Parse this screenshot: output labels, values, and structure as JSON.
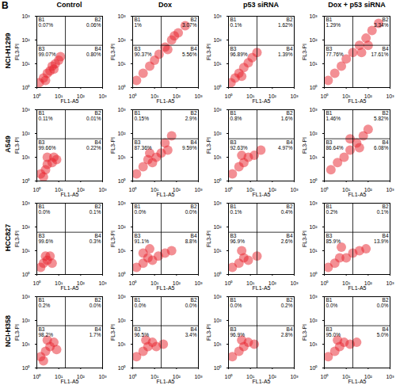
{
  "chart_data": {
    "type": "scatter",
    "panel_label": "B",
    "rows": [
      "NCI-H1299",
      "A549",
      "HCC827",
      "NCI-H358"
    ],
    "columns": [
      "Control",
      "Dox",
      "p53 siRNA",
      "Dox + p53 siRNA"
    ],
    "xlabel": "FL1-A5",
    "ylabel": "FL3-PI",
    "log": true,
    "xlim": [
      1,
      1000
    ],
    "ylim": [
      1,
      1000
    ],
    "xticks": [
      {
        "value": 1,
        "label": "10⁰"
      },
      {
        "value": 10,
        "label": "10¹"
      },
      {
        "value": 100,
        "label": "10²"
      },
      {
        "value": 1000,
        "label": "10³"
      }
    ],
    "yticks": [
      {
        "value": 1,
        "label": "10⁰"
      },
      {
        "value": 10,
        "label": "10¹"
      },
      {
        "value": 100,
        "label": "10²"
      },
      {
        "value": 1000,
        "label": "10³"
      }
    ],
    "color": "#e8202a",
    "marker": "circle",
    "gate": {
      "x": 20,
      "y": 60
    },
    "quadrant_names": [
      "B1",
      "B2",
      "B3",
      "B4"
    ],
    "panels": [
      [
        {
          "points": {
            "x": [
              1.3,
              2,
              3,
              4,
              5,
              7,
              10,
              2.5,
              6,
              12
            ],
            "y": [
              1.6,
              2.5,
              4,
              5,
              8,
              10,
              14,
              2,
              6,
              20
            ]
          },
          "values": [
            0.07,
            0.06,
            99.07,
            0.8
          ],
          "value_labels": [
            "0.07%",
            "0.06%",
            "99.07%",
            "0.80%"
          ]
        },
        {
          "points": {
            "x": [
              1.5,
              3,
              6,
              10,
              16,
              30,
              60,
              120,
              250,
              40,
              80
            ],
            "y": [
              2,
              4,
              8,
              14,
              25,
              50,
              100,
              200,
              400,
              40,
              150
            ]
          },
          "values": [
            1,
            3.07,
            90.37,
            5.56
          ],
          "value_labels": [
            "1%",
            "3.07%",
            "90.37%",
            "5.56%"
          ]
        },
        {
          "points": {
            "x": [
              1.3,
              2,
              3,
              5,
              8,
              12,
              4,
              20
            ],
            "y": [
              1.6,
              2.5,
              4,
              7,
              11,
              18,
              3,
              30
            ]
          },
          "values": [
            0.1,
            1.62,
            96.89,
            1.39
          ],
          "value_labels": [
            "0.1%",
            "1.62%",
            "96.89%",
            "1.39%"
          ]
        },
        {
          "points": {
            "x": [
              1.5,
              3,
              6,
              10,
              20,
              40,
              80,
              150,
              300,
              50,
              100
            ],
            "y": [
              2,
              4,
              8,
              16,
              30,
              60,
              120,
              250,
              500,
              30,
              60
            ]
          },
          "values": [
            1.29,
            3.34,
            77.76,
            17.61
          ],
          "value_labels": [
            "1.29%",
            "3.34%",
            "77.76%",
            "17.61%"
          ]
        }
      ],
      [
        {
          "points": {
            "x": [
              1.5,
              2.5,
              3,
              5,
              6,
              3,
              8,
              2
            ],
            "y": [
              2,
              3,
              5,
              6,
              10,
              10,
              8,
              1.5
            ]
          },
          "values": [
            0.11,
            0.01,
            99.66,
            0.22
          ],
          "value_labels": [
            "0.11%",
            "0.01%",
            "99.66%",
            "0.22%"
          ]
        },
        {
          "points": {
            "x": [
              1.5,
              3,
              5,
              8,
              12,
              20,
              40,
              6,
              30,
              60
            ],
            "y": [
              2,
              4,
              8,
              6,
              10,
              15,
              20,
              15,
              40,
              80
            ]
          },
          "values": [
            0.15,
            2.9,
            87.36,
            9.59
          ],
          "value_labels": [
            "0.15%",
            "2.9%",
            "87.36%",
            "9.59%"
          ]
        },
        {
          "points": {
            "x": [
              1.5,
              3,
              5,
              8,
              15,
              30,
              4
            ],
            "y": [
              2,
              4,
              6,
              10,
              12,
              20,
              12
            ]
          },
          "values": [
            0.8,
            1.6,
            92.63,
            4.97
          ],
          "value_labels": [
            "0.8%",
            "1.6%",
            "92.63%",
            "4.97%"
          ]
        },
        {
          "points": {
            "x": [
              2,
              4,
              8,
              15,
              30,
              60,
              100,
              40,
              15
            ],
            "y": [
              3,
              6,
              10,
              20,
              40,
              80,
              150,
              25,
              60
            ]
          },
          "values": [
            1.46,
            5.82,
            86.64,
            6.08
          ],
          "value_labels": [
            "1.46%",
            "5.82%",
            "86.64%",
            "6.08%"
          ]
        }
      ],
      [
        {
          "points": {
            "x": [
              1.5,
              2,
              3,
              4,
              2.5,
              5
            ],
            "y": [
              2,
              3,
              4,
              6,
              6,
              3
            ]
          },
          "values": [
            0,
            0.1,
            99.6,
            0.3
          ],
          "value_labels": [
            "0.0%",
            "0.1%",
            "99.6%",
            "0.3%"
          ]
        },
        {
          "points": {
            "x": [
              1.5,
              3,
              5,
              8,
              15,
              30,
              60,
              6,
              3
            ],
            "y": [
              2,
              3,
              5,
              4,
              6,
              8,
              10,
              12,
              8
            ]
          },
          "values": [
            0,
            0,
            91.1,
            8.8
          ],
          "value_labels": [
            "0.0%",
            "0.0%",
            "91.1%",
            "8.8%"
          ]
        },
        {
          "points": {
            "x": [
              1.5,
              3,
              5,
              8,
              4,
              20
            ],
            "y": [
              2,
              3,
              5,
              4,
              10,
              6
            ]
          },
          "values": [
            0.1,
            0.4,
            96.9,
            2.6
          ],
          "value_labels": [
            "0.1%",
            "0.4%",
            "96.9%",
            "2.6%"
          ]
        },
        {
          "points": {
            "x": [
              1.5,
              3,
              5,
              10,
              20,
              40,
              80,
              6
            ],
            "y": [
              2,
              3,
              5,
              5,
              8,
              10,
              12,
              14
            ]
          },
          "values": [
            0.2,
            0.1,
            85.9,
            13.9
          ],
          "value_labels": [
            "0.2%",
            "0.1%",
            "85.9%",
            "13.9%"
          ]
        }
      ],
      [
        {
          "points": {
            "x": [
              1.5,
              2.5,
              4,
              6,
              3,
              8,
              2
            ],
            "y": [
              3,
              5,
              8,
              12,
              15,
              6,
              2
            ]
          },
          "values": [
            0.2,
            0,
            98.2,
            1.7
          ],
          "value_labels": [
            "0.2%",
            "0.0%",
            "98.2%",
            "1.7%"
          ]
        },
        {
          "points": {
            "x": [
              1.5,
              3,
              5,
              8,
              12,
              4,
              25
            ],
            "y": [
              3,
              5,
              8,
              12,
              8,
              15,
              10
            ]
          },
          "values": [
            0,
            0,
            96.5,
            3.4
          ],
          "value_labels": [
            "0.0%",
            "0.0%",
            "96.5%",
            "3.4%"
          ]
        },
        {
          "points": {
            "x": [
              1.5,
              3,
              5,
              8,
              4,
              15
            ],
            "y": [
              3,
              5,
              8,
              12,
              15,
              10
            ]
          },
          "values": [
            0,
            0.2,
            96.9,
            2.8
          ],
          "value_labels": [
            "0.0%",
            "0.2%",
            "96.9%",
            "2.8%"
          ]
        },
        {
          "points": {
            "x": [
              1.5,
              3,
              5,
              8,
              15,
              4,
              30
            ],
            "y": [
              3,
              5,
              8,
              12,
              10,
              15,
              12
            ]
          },
          "values": [
            0,
            0,
            95,
            5
          ],
          "value_labels": [
            "0.0%",
            "0.0%",
            "95.0%",
            "5.0%"
          ]
        }
      ]
    ]
  }
}
